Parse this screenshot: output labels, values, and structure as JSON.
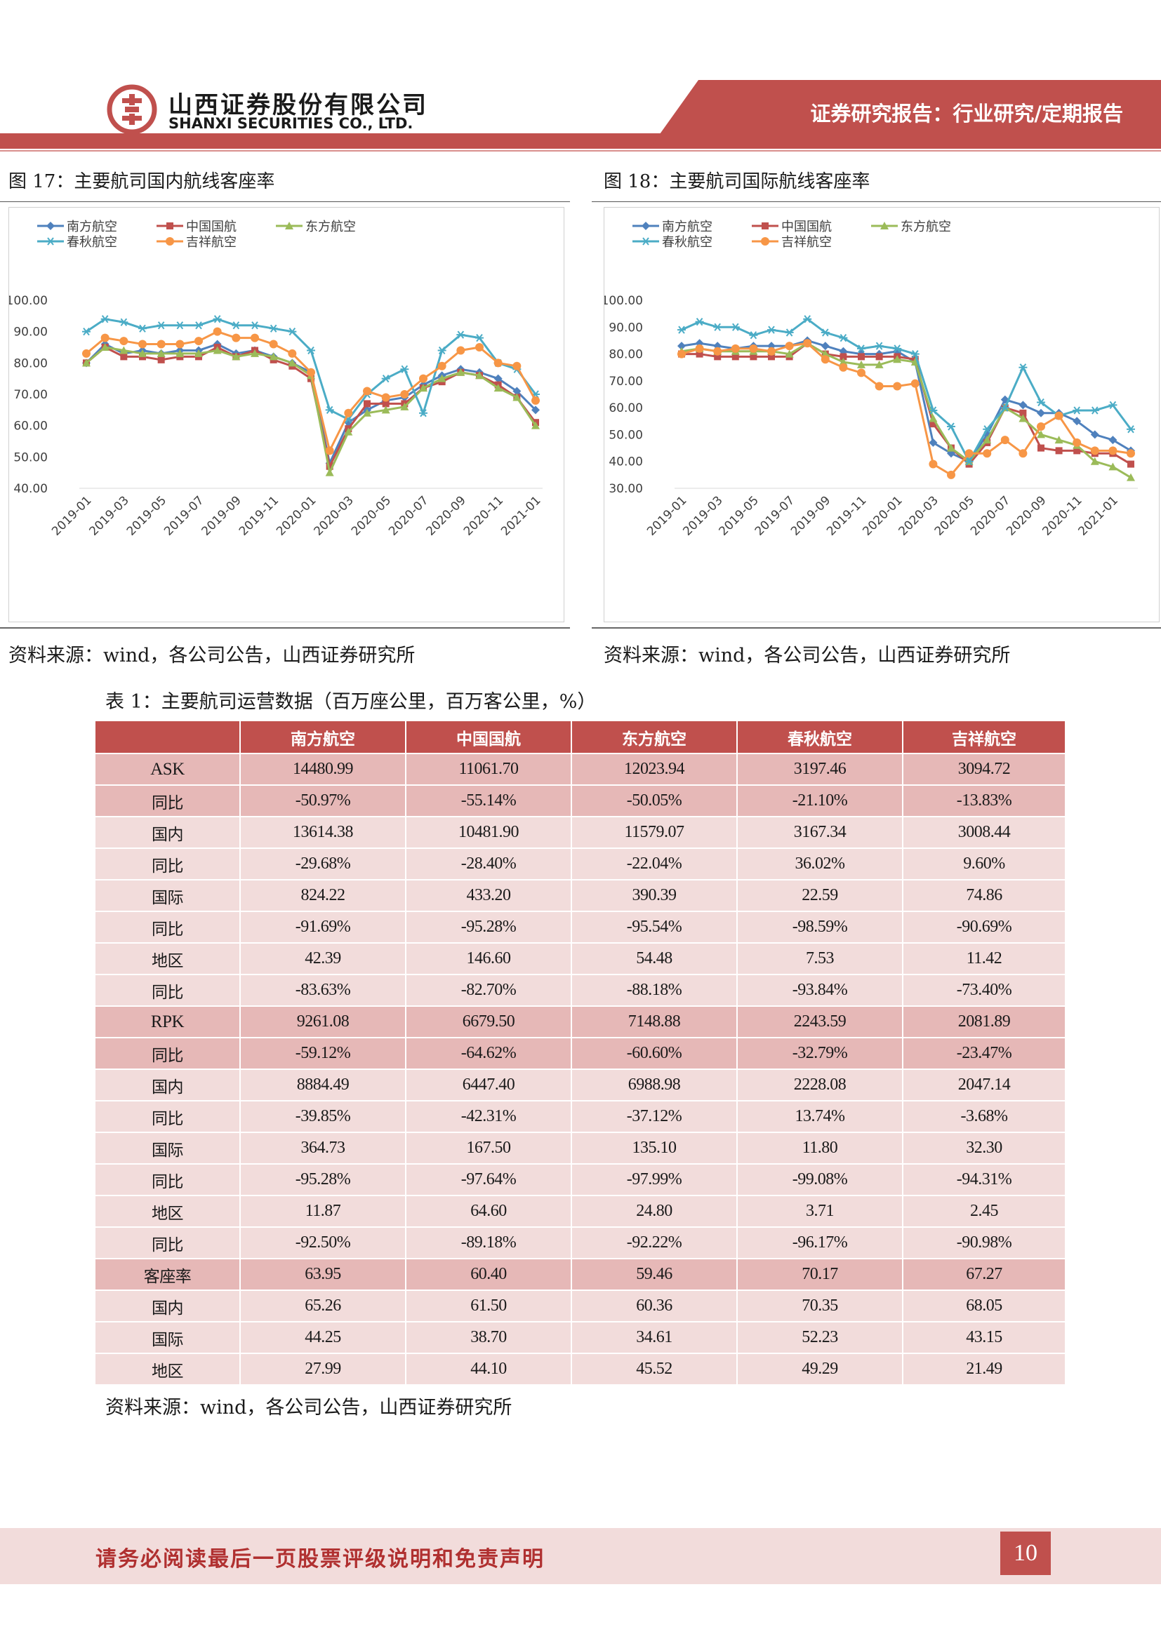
{
  "header": {
    "company_cn": "山西证券股份有限公司",
    "company_en": "SHANXI SECURITIES CO., LTD.",
    "report_type": "证券研究报告：行业研究/定期报告",
    "brand_color": "#c0504d"
  },
  "figures": [
    {
      "title": "图 17：主要航司国内航线客座率",
      "source": "资料来源：wind，各公司公告，山西证券研究所"
    },
    {
      "title": "图 18：主要航司国际航线客座率",
      "source": "资料来源：wind，各公司公告，山西证券研究所"
    }
  ],
  "chart_data": [
    {
      "type": "line",
      "x_ticks": [
        "2019-01",
        "2019-03",
        "2019-05",
        "2019-07",
        "2019-09",
        "2019-11",
        "2020-01",
        "2020-03",
        "2020-05",
        "2020-07",
        "2020-09",
        "2020-11",
        "2021-01"
      ],
      "y_ticks": [
        "100.00",
        "90.00",
        "80.00",
        "70.00",
        "60.00",
        "50.00",
        "40.00"
      ],
      "ylim": [
        40,
        100
      ],
      "legend": [
        "南方航空",
        "中国国航",
        "东方航空",
        "春秋航空",
        "吉祥航空"
      ],
      "series": [
        {
          "name": "南方航空",
          "color": "#4f81bd",
          "marker": "diamond",
          "values": [
            80,
            86,
            83,
            84,
            83,
            84,
            84,
            86,
            83,
            84,
            82,
            80,
            77,
            48,
            61,
            65,
            68,
            69,
            73,
            76,
            78,
            77,
            75,
            71,
            65
          ]
        },
        {
          "name": "中国国航",
          "color": "#c0504d",
          "marker": "square",
          "values": [
            80,
            85,
            82,
            82,
            81,
            82,
            82,
            85,
            82,
            84,
            81,
            79,
            75,
            47,
            59,
            67,
            67,
            67,
            72,
            74,
            77,
            76,
            73,
            69,
            61
          ]
        },
        {
          "name": "东方航空",
          "color": "#9bbb59",
          "marker": "triangle",
          "values": [
            80,
            85,
            84,
            83,
            83,
            83,
            83,
            84,
            82,
            83,
            82,
            80,
            76,
            45,
            58,
            64,
            65,
            66,
            72,
            75,
            77,
            76,
            72,
            69,
            60
          ]
        },
        {
          "name": "春秋航空",
          "color": "#4bacc6",
          "marker": "star",
          "values": [
            90,
            94,
            93,
            91,
            92,
            92,
            92,
            94,
            92,
            92,
            91,
            90,
            84,
            65,
            62,
            70,
            75,
            78,
            64,
            84,
            89,
            88,
            80,
            78,
            70
          ]
        },
        {
          "name": "吉祥航空",
          "color": "#f79646",
          "marker": "circle",
          "values": [
            83,
            88,
            87,
            86,
            86,
            86,
            87,
            90,
            88,
            88,
            86,
            83,
            77,
            52,
            64,
            71,
            69,
            70,
            75,
            79,
            84,
            85,
            80,
            79,
            68
          ]
        }
      ]
    },
    {
      "type": "line",
      "x_ticks": [
        "2019-01",
        "2019-03",
        "2019-05",
        "2019-07",
        "2019-09",
        "2019-11",
        "2020-01",
        "2020-03",
        "2020-05",
        "2020-07",
        "2020-09",
        "2020-11",
        "2021-01"
      ],
      "y_ticks": [
        "100.00",
        "90.00",
        "80.00",
        "70.00",
        "60.00",
        "50.00",
        "40.00",
        "30.00"
      ],
      "ylim": [
        30,
        100
      ],
      "legend": [
        "南方航空",
        "中国国航",
        "东方航空",
        "春秋航空",
        "吉祥航空"
      ],
      "series": [
        {
          "name": "南方航空",
          "color": "#4f81bd",
          "marker": "diamond",
          "values": [
            83,
            84,
            83,
            82,
            83,
            83,
            83,
            85,
            83,
            81,
            80,
            80,
            81,
            77,
            47,
            43,
            40,
            50,
            63,
            61,
            58,
            58,
            55,
            50,
            48,
            44
          ]
        },
        {
          "name": "中国国航",
          "color": "#c0504d",
          "marker": "square",
          "values": [
            80,
            80,
            79,
            79,
            79,
            79,
            79,
            84,
            80,
            79,
            79,
            79,
            79,
            78,
            54,
            45,
            39,
            47,
            60,
            58,
            45,
            44,
            44,
            43,
            43,
            39
          ]
        },
        {
          "name": "东方航空",
          "color": "#9bbb59",
          "marker": "triangle",
          "values": [
            81,
            82,
            81,
            81,
            81,
            81,
            80,
            84,
            80,
            77,
            76,
            76,
            78,
            77,
            56,
            45,
            40,
            48,
            60,
            56,
            50,
            48,
            46,
            40,
            38,
            34
          ]
        },
        {
          "name": "春秋航空",
          "color": "#4bacc6",
          "marker": "star",
          "values": [
            89,
            92,
            90,
            90,
            87,
            89,
            88,
            93,
            88,
            86,
            82,
            83,
            82,
            80,
            59,
            53,
            40,
            52,
            60,
            75,
            62,
            57,
            59,
            59,
            61,
            52
          ]
        },
        {
          "name": "吉祥航空",
          "color": "#f79646",
          "marker": "circle",
          "values": [
            80,
            82,
            81,
            82,
            82,
            81,
            83,
            84,
            78,
            75,
            73,
            68,
            68,
            69,
            39,
            35,
            43,
            43,
            48,
            43,
            53,
            57,
            47,
            44,
            44,
            43
          ]
        }
      ]
    }
  ],
  "table": {
    "title": "表 1：主要航司运营数据（百万座公里，百万客公里，%）",
    "columns": [
      "",
      "南方航空",
      "中国国航",
      "东方航空",
      "春秋航空",
      "吉祥航空"
    ],
    "rows": [
      {
        "label": "ASK",
        "style": "hi",
        "values": [
          "14480.99",
          "11061.70",
          "12023.94",
          "3197.46",
          "3094.72"
        ]
      },
      {
        "label": "同比",
        "style": "hi",
        "values": [
          "-50.97%",
          "-55.14%",
          "-50.05%",
          "-21.10%",
          "-13.83%"
        ]
      },
      {
        "label": "国内",
        "style": "lo",
        "values": [
          "13614.38",
          "10481.90",
          "11579.07",
          "3167.34",
          "3008.44"
        ]
      },
      {
        "label": "同比",
        "style": "lo",
        "values": [
          "-29.68%",
          "-28.40%",
          "-22.04%",
          "36.02%",
          "9.60%"
        ]
      },
      {
        "label": "国际",
        "style": "lo",
        "values": [
          "824.22",
          "433.20",
          "390.39",
          "22.59",
          "74.86"
        ]
      },
      {
        "label": "同比",
        "style": "lo",
        "values": [
          "-91.69%",
          "-95.28%",
          "-95.54%",
          "-98.59%",
          "-90.69%"
        ]
      },
      {
        "label": "地区",
        "style": "lo",
        "values": [
          "42.39",
          "146.60",
          "54.48",
          "7.53",
          "11.42"
        ]
      },
      {
        "label": "同比",
        "style": "lo",
        "values": [
          "-83.63%",
          "-82.70%",
          "-88.18%",
          "-93.84%",
          "-73.40%"
        ]
      },
      {
        "label": "RPK",
        "style": "hi",
        "values": [
          "9261.08",
          "6679.50",
          "7148.88",
          "2243.59",
          "2081.89"
        ]
      },
      {
        "label": "同比",
        "style": "hi",
        "values": [
          "-59.12%",
          "-64.62%",
          "-60.60%",
          "-32.79%",
          "-23.47%"
        ]
      },
      {
        "label": "国内",
        "style": "lo",
        "values": [
          "8884.49",
          "6447.40",
          "6988.98",
          "2228.08",
          "2047.14"
        ]
      },
      {
        "label": "同比",
        "style": "lo",
        "values": [
          "-39.85%",
          "-42.31%",
          "-37.12%",
          "13.74%",
          "-3.68%"
        ]
      },
      {
        "label": "国际",
        "style": "lo",
        "values": [
          "364.73",
          "167.50",
          "135.10",
          "11.80",
          "32.30"
        ]
      },
      {
        "label": "同比",
        "style": "lo",
        "values": [
          "-95.28%",
          "-97.64%",
          "-97.99%",
          "-99.08%",
          "-94.31%"
        ]
      },
      {
        "label": "地区",
        "style": "lo",
        "values": [
          "11.87",
          "64.60",
          "24.80",
          "3.71",
          "2.45"
        ]
      },
      {
        "label": "同比",
        "style": "lo",
        "values": [
          "-92.50%",
          "-89.18%",
          "-92.22%",
          "-96.17%",
          "-90.98%"
        ]
      },
      {
        "label": "客座率",
        "style": "hi",
        "values": [
          "63.95",
          "60.40",
          "59.46",
          "70.17",
          "67.27"
        ]
      },
      {
        "label": "国内",
        "style": "lo",
        "values": [
          "65.26",
          "61.50",
          "60.36",
          "70.35",
          "68.05"
        ]
      },
      {
        "label": "国际",
        "style": "lo",
        "values": [
          "44.25",
          "38.70",
          "34.61",
          "52.23",
          "43.15"
        ]
      },
      {
        "label": "地区",
        "style": "lo",
        "values": [
          "27.99",
          "44.10",
          "45.52",
          "49.29",
          "21.49"
        ]
      }
    ],
    "source": "资料来源：wind，各公司公告，山西证券研究所"
  },
  "footer": {
    "disclaimer": "请务必阅读最后一页股票评级说明和免责声明",
    "page_number": "10"
  }
}
